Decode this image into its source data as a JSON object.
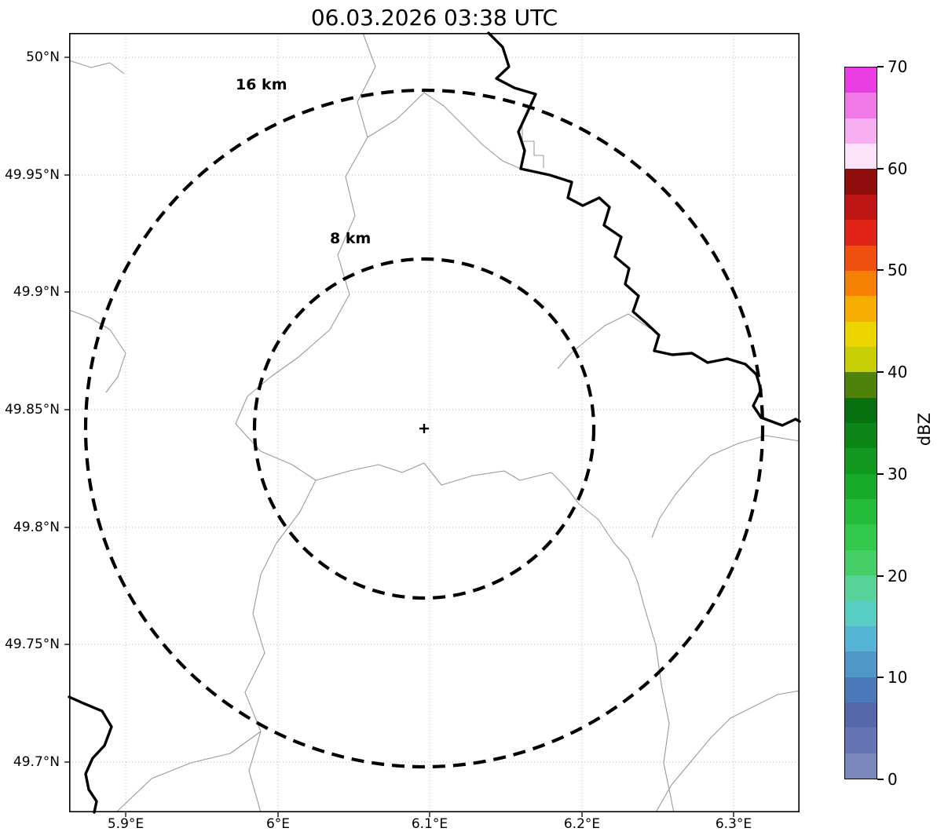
{
  "title": "06.03.2026 03:38 UTC",
  "chart_data": {
    "type": "map",
    "subtype": "radar-range-ring-map",
    "title": "06.03.2026 03:38 UTC",
    "x_axis": {
      "tick_labels": [
        "5.9°E",
        "6°E",
        "6.1°E",
        "6.2°E",
        "6.3°E"
      ],
      "range_deg_e": [
        5.863,
        6.343
      ],
      "grid": "dotted"
    },
    "y_axis": {
      "tick_labels": [
        "50°N",
        "49.95°N",
        "49.9°N",
        "49.85°N",
        "49.8°N",
        "49.75°N",
        "49.7°N"
      ],
      "range_deg_n": [
        49.679,
        50.01
      ],
      "grid": "dotted"
    },
    "radar_center": {
      "lon_deg_e": 6.096,
      "lat_deg_n": 49.842,
      "marker": "+"
    },
    "range_rings": [
      {
        "radius_km": 8,
        "label": "8 km"
      },
      {
        "radius_km": 16,
        "label": "16 km"
      }
    ],
    "reflectivity_echoes": [],
    "colorbar": {
      "label": "dBZ",
      "tick_labels": [
        "70",
        "60",
        "50",
        "40",
        "30",
        "20",
        "10",
        "0"
      ],
      "min": 0,
      "max": 70,
      "colors_bottom_to_top": [
        "#7b86bb",
        "#6674b2",
        "#5468ab",
        "#4b79bb",
        "#4f97c9",
        "#56b5d4",
        "#57cfc3",
        "#57d39a",
        "#46ce66",
        "#32c84b",
        "#24bc38",
        "#18ab28",
        "#10991e",
        "#0b8617",
        "#077110",
        "#4f820b",
        "#c8cf06",
        "#ecd400",
        "#f4ad00",
        "#f58002",
        "#f04f10",
        "#e02418",
        "#c01616",
        "#8f0d0d",
        "#fbe3fa",
        "#f6aef0",
        "#f07ae8",
        "#e93ce1"
      ]
    },
    "map_layers": {
      "thin_border_paths": [
        "M374,0 L390,43 367,88 380,133 352,183 364,233 342,283 357,333 332,378 292,413 257,438 227,463 212,498 244,533 284,550 314,570 294,610 264,650 244,690 234,740 249,790 224,840 244,890 229,940 244,993",
        "M380,133 L417,110 452,76 477,93 502,118 527,143 552,163 575,173",
        "M577,118 L577,138 592,138 592,156 604,156 604,172",
        "M742,378 L712,358 682,373 657,393 639,408 622,428",
        "M930,520 L887,513 852,523 817,538 797,558 772,588 752,618 742,643",
        "M314,570 L357,558 394,550 424,560 452,548 474,576 514,564 554,558 574,570 614,560 634,580 649,600 674,620 694,650 712,670 724,700 732,730 747,780 754,830 764,880 757,930 770,993",
        "M747,993 L767,958 792,928 817,898 842,873 872,858 902,843 930,838",
        "M0,353 L27,363 52,378 72,408 62,438 47,458",
        "M60,993 L105,950 155,930 205,918 244,890",
        "M0,35 L28,44 52,38 70,52"
      ],
      "thick_river_paths": [
        "M534,0 L552,18 560,43 544,58 567,70 594,78 584,100 572,126 580,150 575,173 612,181 640,190 635,210 654,220 675,210 688,222 681,245 703,260 695,285 713,300 708,320 725,335 718,355 735,370 751,385 745,405 768,410 793,408 813,420 838,415 861,422 875,435 881,455 871,475 881,490 908,500 925,492 930,495",
        "M0,846 L18,854 42,864 54,884 45,908 30,924 21,944 25,964 35,979 32,993"
      ]
    }
  }
}
